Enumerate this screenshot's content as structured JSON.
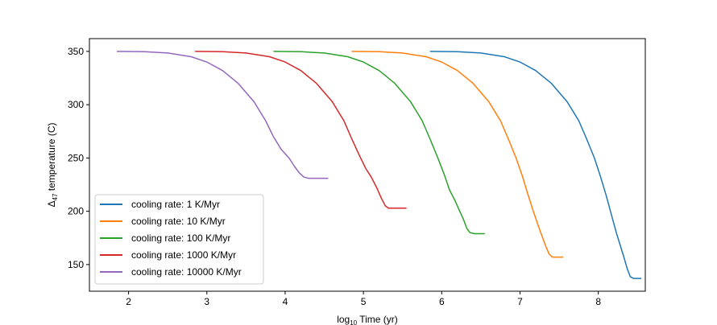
{
  "chart_data": {
    "type": "line",
    "title": "",
    "xlabel": "log",
    "xlabel_sub": "10",
    "xlabel_suffix": " Time (yr)",
    "ylabel": "Δ",
    "ylabel_sub": "47",
    "ylabel_suffix": " temperature (C)",
    "xlim": [
      1.5,
      8.6
    ],
    "ylim": [
      125,
      362
    ],
    "xticks": [
      2,
      3,
      4,
      5,
      6,
      7,
      8
    ],
    "yticks": [
      150,
      200,
      250,
      300,
      350
    ],
    "grid": false,
    "legend_position": "lower-left",
    "series": [
      {
        "name": "cooling rate: 1 K/Myr",
        "color": "#1f77b4",
        "points": [
          [
            5.85,
            350
          ],
          [
            6.2,
            349.7
          ],
          [
            6.5,
            348.5
          ],
          [
            6.8,
            345
          ],
          [
            7.0,
            340
          ],
          [
            7.2,
            332
          ],
          [
            7.4,
            320
          ],
          [
            7.6,
            303
          ],
          [
            7.75,
            285
          ],
          [
            7.85,
            268
          ],
          [
            7.95,
            250
          ],
          [
            8.03,
            232
          ],
          [
            8.1,
            215
          ],
          [
            8.17,
            196
          ],
          [
            8.23,
            180
          ],
          [
            8.28,
            168
          ],
          [
            8.33,
            156
          ],
          [
            8.37,
            146
          ],
          [
            8.41,
            138.5
          ],
          [
            8.45,
            137
          ],
          [
            8.55,
            137
          ]
        ]
      },
      {
        "name": "cooling rate: 10 K/Myr",
        "color": "#ff7f0e",
        "points": [
          [
            4.85,
            350
          ],
          [
            5.2,
            349.7
          ],
          [
            5.5,
            348.5
          ],
          [
            5.8,
            345
          ],
          [
            6.0,
            340
          ],
          [
            6.2,
            332
          ],
          [
            6.4,
            320
          ],
          [
            6.6,
            303
          ],
          [
            6.75,
            285
          ],
          [
            6.85,
            268
          ],
          [
            6.95,
            250
          ],
          [
            7.03,
            233
          ],
          [
            7.1,
            216
          ],
          [
            7.17,
            200
          ],
          [
            7.23,
            187
          ],
          [
            7.28,
            177
          ],
          [
            7.33,
            167
          ],
          [
            7.37,
            160
          ],
          [
            7.41,
            157
          ],
          [
            7.45,
            157
          ],
          [
            7.55,
            157
          ]
        ]
      },
      {
        "name": "cooling rate: 100 K/Myr",
        "color": "#2ca02c",
        "points": [
          [
            3.85,
            350
          ],
          [
            4.2,
            349.7
          ],
          [
            4.5,
            348.5
          ],
          [
            4.8,
            345
          ],
          [
            5.0,
            340
          ],
          [
            5.2,
            332
          ],
          [
            5.4,
            320
          ],
          [
            5.6,
            303
          ],
          [
            5.75,
            285
          ],
          [
            5.85,
            268
          ],
          [
            5.95,
            250
          ],
          [
            6.03,
            235
          ],
          [
            6.1,
            220
          ],
          [
            6.17,
            210
          ],
          [
            6.23,
            200
          ],
          [
            6.28,
            192
          ],
          [
            6.32,
            184
          ],
          [
            6.36,
            180
          ],
          [
            6.42,
            179
          ],
          [
            6.55,
            179
          ]
        ]
      },
      {
        "name": "cooling rate: 1000 K/Myr",
        "color": "#d62728",
        "points": [
          [
            2.85,
            350
          ],
          [
            3.2,
            349.7
          ],
          [
            3.5,
            348.5
          ],
          [
            3.8,
            345
          ],
          [
            4.0,
            340
          ],
          [
            4.2,
            332
          ],
          [
            4.4,
            320
          ],
          [
            4.6,
            303
          ],
          [
            4.75,
            285
          ],
          [
            4.85,
            268
          ],
          [
            4.95,
            252
          ],
          [
            5.03,
            240
          ],
          [
            5.1,
            232
          ],
          [
            5.17,
            222
          ],
          [
            5.23,
            212
          ],
          [
            5.28,
            205
          ],
          [
            5.32,
            203
          ],
          [
            5.4,
            203
          ],
          [
            5.55,
            203
          ]
        ]
      },
      {
        "name": "cooling rate: 10000 K/Myr",
        "color": "#9467bd",
        "points": [
          [
            1.85,
            350
          ],
          [
            2.2,
            349.7
          ],
          [
            2.5,
            348.5
          ],
          [
            2.8,
            345
          ],
          [
            3.0,
            340
          ],
          [
            3.2,
            332
          ],
          [
            3.4,
            320
          ],
          [
            3.6,
            303
          ],
          [
            3.75,
            285
          ],
          [
            3.85,
            270
          ],
          [
            3.95,
            258
          ],
          [
            4.05,
            250
          ],
          [
            4.12,
            242
          ],
          [
            4.18,
            236
          ],
          [
            4.24,
            232
          ],
          [
            4.3,
            231
          ],
          [
            4.4,
            231
          ],
          [
            4.55,
            231
          ]
        ]
      }
    ]
  }
}
